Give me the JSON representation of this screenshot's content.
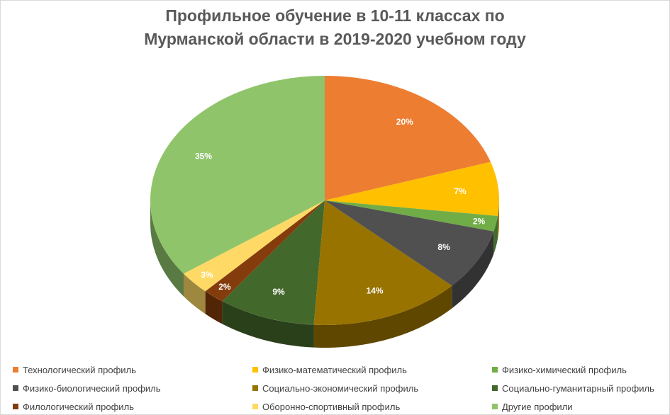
{
  "chart_data": {
    "type": "pie",
    "title": [
      "Профильное обучение в 10-11 классах по",
      "Мурманской области в 2019-2020 учебном году"
    ],
    "categories": [
      "Технологический профиль",
      "Физико-математический профиль",
      "Физико-химический профиль",
      "Физико-биологический профиль",
      "Социально-экономический профиль",
      "Социально-гуманитарный профиль",
      "Филологический профиль",
      "Оборонно-спортивный профиль",
      "Другие профили"
    ],
    "values": [
      20,
      7,
      2,
      8,
      14,
      9,
      2,
      3,
      35
    ],
    "data_labels": [
      "20%",
      "7%",
      "2%",
      "8%",
      "14%",
      "9%",
      "2%",
      "3%",
      "35%"
    ],
    "colors": [
      "#ED7D31",
      "#FFC000",
      "#70AD47",
      "#505050",
      "#997300",
      "#43682B",
      "#843C0C",
      "#FFD966",
      "#8FC46A"
    ],
    "legend_position": "bottom",
    "style": "3d"
  }
}
